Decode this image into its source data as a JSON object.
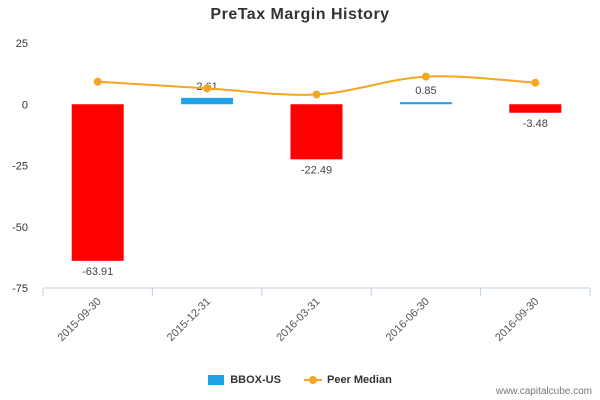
{
  "chart_data": {
    "type": "bar",
    "title": "PreTax Margin History",
    "categories": [
      "2015-09-30",
      "2015-12-31",
      "2016-03-31",
      "2016-06-30",
      "2016-09-30"
    ],
    "series": [
      {
        "name": "BBOX-US",
        "type": "bar",
        "values": [
          -63.91,
          2.61,
          -22.49,
          0.85,
          -3.48
        ],
        "labels": [
          "-63.91",
          "2.61",
          "-22.49",
          "0.85",
          "-3.48"
        ]
      },
      {
        "name": "Peer Median",
        "type": "line",
        "values": [
          9.2,
          6.5,
          4.0,
          11.3,
          8.8
        ]
      }
    ],
    "yticks": [
      25,
      0,
      -25,
      -50,
      -75
    ],
    "ylim": [
      -75,
      25
    ],
    "xlabel": "",
    "ylabel": "",
    "grid": false,
    "legend_position": "bottom-center"
  },
  "colors": {
    "positive_bar": "#1fa2e6",
    "negative_bar": "#ff0000",
    "peer_line": "#f5a623",
    "axis": "#c0d0e0"
  },
  "legend": {
    "bar_label": "BBOX-US",
    "line_label": "Peer Median"
  },
  "source": "www.capitalcube.com"
}
